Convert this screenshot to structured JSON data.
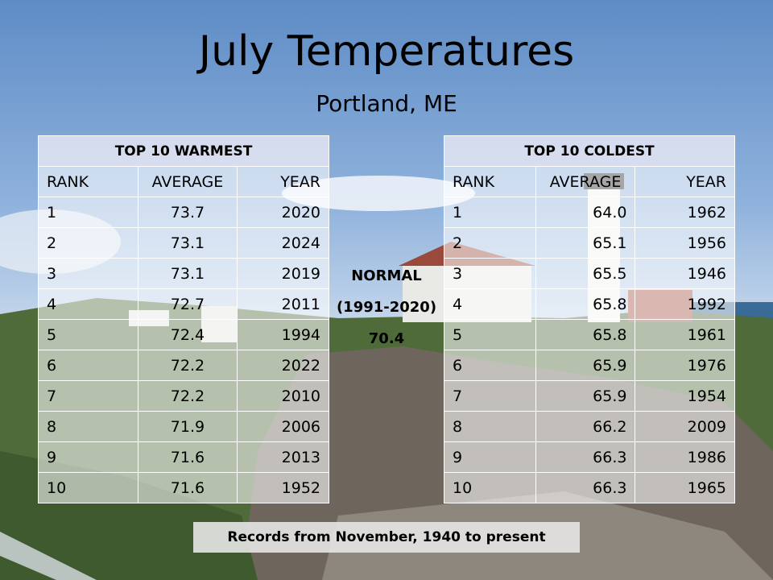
{
  "slide": {
    "title": "July Temperatures",
    "subtitle": "Portland, ME"
  },
  "warmest": {
    "header": "TOP 10 WARMEST",
    "columns": [
      "RANK",
      "AVERAGE",
      "YEAR"
    ],
    "rows": [
      [
        "1",
        "73.7",
        "2020"
      ],
      [
        "2",
        "73.1",
        "2024"
      ],
      [
        "3",
        "73.1",
        "2019"
      ],
      [
        "4",
        "72.7",
        "2011"
      ],
      [
        "5",
        "72.4",
        "1994"
      ],
      [
        "6",
        "72.2",
        "2022"
      ],
      [
        "7",
        "72.2",
        "2010"
      ],
      [
        "8",
        "71.9",
        "2006"
      ],
      [
        "9",
        "71.6",
        "2013"
      ],
      [
        "10",
        "71.6",
        "1952"
      ]
    ]
  },
  "coldest": {
    "header": "TOP 10 COLDEST",
    "columns": [
      "RANK",
      "AVERAGE",
      "YEAR"
    ],
    "rows": [
      [
        "1",
        "64.0",
        "1962"
      ],
      [
        "2",
        "65.1",
        "1956"
      ],
      [
        "3",
        "65.5",
        "1946"
      ],
      [
        "4",
        "65.8",
        "1992"
      ],
      [
        "5",
        "65.8",
        "1961"
      ],
      [
        "6",
        "65.9",
        "1976"
      ],
      [
        "7",
        "65.9",
        "1954"
      ],
      [
        "8",
        "66.2",
        "2009"
      ],
      [
        "9",
        "66.3",
        "1986"
      ],
      [
        "10",
        "66.3",
        "1965"
      ]
    ]
  },
  "normal": {
    "label": "NORMAL",
    "period": "(1991-2020)",
    "value": "70.4"
  },
  "footer": {
    "text": "Records from November, 1940 to present"
  }
}
